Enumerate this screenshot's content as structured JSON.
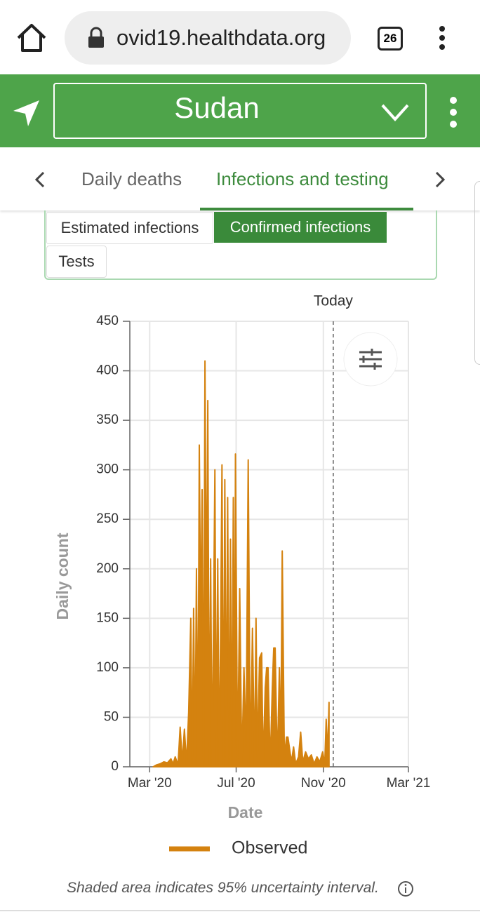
{
  "browser": {
    "url": "ovid19.healthdata.org",
    "tab_count": "26"
  },
  "location": "Sudan",
  "tabs": [
    "Daily deaths",
    "Infections and testing"
  ],
  "subtabs": [
    "Estimated infections",
    "Confirmed infections",
    "Tests"
  ],
  "footnote": "Shaded area indicates 95% uncertainty interval.",
  "chart_data": {
    "type": "area",
    "x_label": "Date",
    "y_label": "Daily count",
    "xlim": [
      -28,
      365
    ],
    "xticks": [
      {
        "value": 0,
        "label": "Mar '20"
      },
      {
        "value": 122,
        "label": "Jul '20"
      },
      {
        "value": 245,
        "label": "Nov '20"
      },
      {
        "value": 365,
        "label": "Mar '21"
      }
    ],
    "ylim": [
      0,
      450
    ],
    "yticks": [
      0,
      50,
      100,
      150,
      200,
      250,
      300,
      350,
      400,
      450
    ],
    "grid": true,
    "annotations": [
      {
        "x": 259,
        "text": "Today"
      }
    ],
    "series": [
      {
        "name": "Observed",
        "color": "#d4820f",
        "x": [
          5,
          10,
          15,
          20,
          25,
          30,
          33,
          36,
          40,
          43,
          46,
          49,
          52,
          55,
          58,
          60,
          62,
          64,
          66,
          68,
          70,
          72,
          74,
          76,
          78,
          80,
          82,
          84,
          86,
          88,
          90,
          92,
          94,
          96,
          98,
          100,
          102,
          104,
          106,
          108,
          110,
          112,
          114,
          116,
          118,
          120,
          121,
          124,
          127,
          130,
          133,
          136,
          139,
          142,
          145,
          148,
          150,
          152,
          155,
          158,
          160,
          163,
          165,
          167,
          170,
          173,
          175,
          177,
          180,
          183,
          185,
          187,
          190,
          193,
          195,
          198,
          200,
          203,
          206,
          210,
          213,
          216,
          220,
          224,
          228,
          232,
          236,
          240,
          244,
          247,
          249,
          251,
          253
        ],
        "values": [
          0,
          2,
          3,
          5,
          4,
          8,
          3,
          10,
          2,
          40,
          5,
          38,
          3,
          55,
          150,
          0,
          160,
          5,
          200,
          0,
          325,
          140,
          280,
          0,
          410,
          140,
          370,
          0,
          210,
          0,
          140,
          300,
          0,
          210,
          0,
          130,
          305,
          0,
          290,
          10,
          272,
          0,
          230,
          0,
          272,
          20,
          316,
          0,
          180,
          0,
          100,
          20,
          310,
          0,
          140,
          0,
          150,
          10,
          110,
          115,
          0,
          80,
          100,
          100,
          0,
          80,
          120,
          120,
          0,
          100,
          20,
          218,
          10,
          30,
          30,
          15,
          5,
          20,
          3,
          10,
          35,
          5,
          15,
          8,
          12,
          3,
          10,
          5,
          15,
          3,
          48,
          10,
          65
        ]
      }
    ]
  }
}
